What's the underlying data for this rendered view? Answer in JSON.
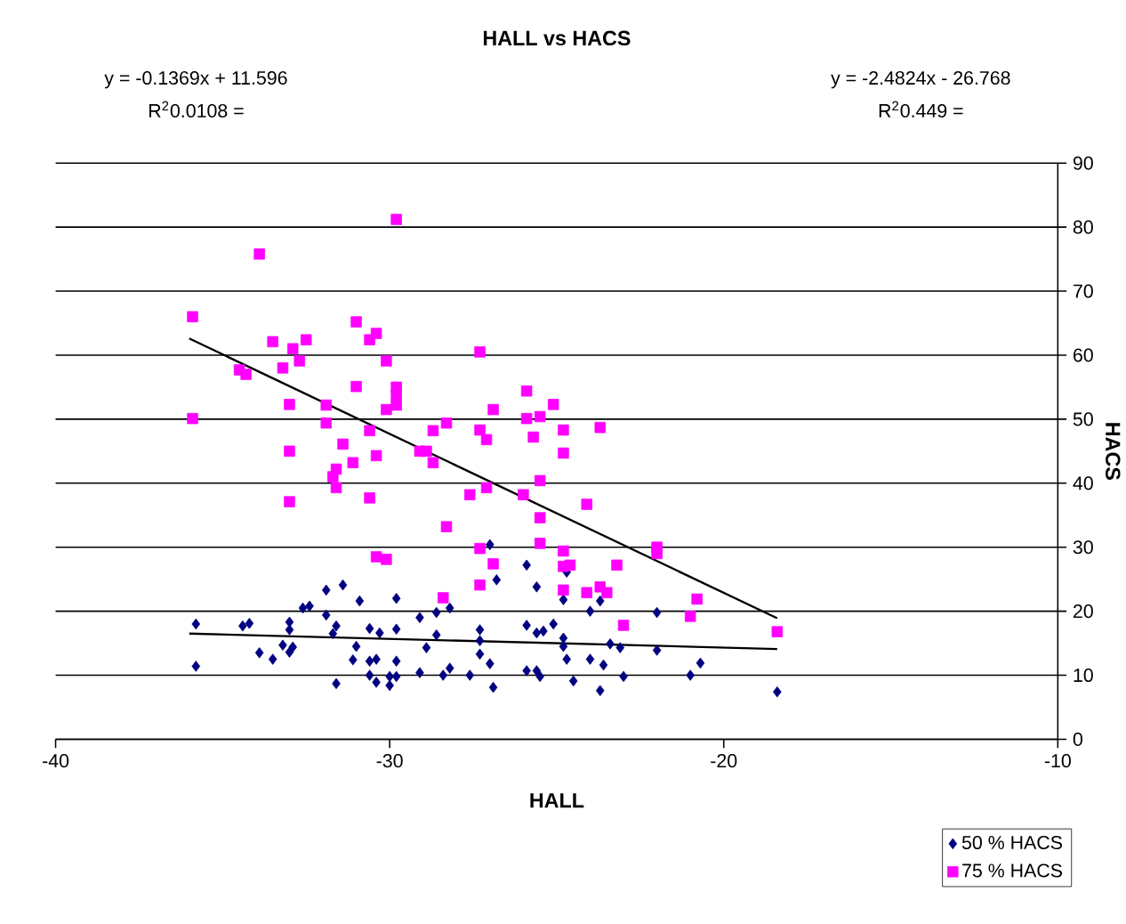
{
  "chart_data": {
    "type": "scatter",
    "title": "HALL vs HACS",
    "xlabel": "HALL",
    "ylabel": "HACS",
    "annotations": [
      "y = -0.1369x + 11.596",
      "R$^{2}$0.0108 =",
      "y = -2.4824x - 26.768",
      "R$^{2}$0.449 ="
    ],
    "xlim": [
      -40,
      -10
    ],
    "xticks": [
      -40,
      -30,
      -20,
      -10
    ],
    "ylim": [
      0,
      90
    ],
    "yticks": [
      0,
      10,
      20,
      30,
      40,
      50,
      60,
      70,
      80,
      90
    ],
    "grid": "y",
    "legend": "bottom right",
    "series": [
      {
        "name": "50 % HACS",
        "color": "#000080",
        "marker": "diamond",
        "x": [
          -35.8,
          -35.8,
          -34.4,
          -34.2,
          -33.9,
          -33.5,
          -33.2,
          -33.0,
          -32.9,
          -33.0,
          -33.0,
          -32.6,
          -32.4,
          -31.9,
          -31.4,
          -30.9,
          -31.9,
          -31.6,
          -31.7,
          -31.0,
          -31.1,
          -31.6,
          -30.6,
          -30.3,
          -30.6,
          -30.4,
          -30.6,
          -30.4,
          -30.0,
          -30.0,
          -29.8,
          -29.8,
          -29.8,
          -29.8,
          -29.1,
          -28.6,
          -28.2,
          -28.6,
          -28.9,
          -29.1,
          -28.4,
          -28.2,
          -27.6,
          -27.3,
          -27.3,
          -27.3,
          -27.0,
          -26.9,
          -25.9,
          -25.9,
          -25.6,
          -25.6,
          -25.6,
          -27.0,
          -25.9,
          -26.8,
          -25.5,
          -24.8,
          -24.7,
          -25.1,
          -25.4,
          -24.8,
          -24.8,
          -24.7,
          -24.0,
          -24.0,
          -23.7,
          -23.6,
          -23.4,
          -23.1,
          -24.5,
          -23.7,
          -23.0,
          -22.0,
          -22.0,
          -21.0,
          -20.7,
          -18.4
        ],
        "values": [
          18.0,
          11.4,
          17.7,
          18.1,
          13.5,
          12.5,
          14.7,
          13.6,
          14.4,
          18.3,
          17.1,
          20.5,
          20.8,
          23.3,
          24.1,
          21.6,
          19.4,
          17.7,
          16.5,
          14.5,
          12.4,
          8.7,
          17.3,
          16.6,
          12.2,
          12.5,
          10.0,
          8.9,
          8.4,
          9.8,
          12.2,
          9.8,
          17.2,
          22.0,
          19.0,
          19.8,
          20.5,
          16.3,
          14.3,
          10.4,
          10.0,
          11.1,
          10.0,
          17.1,
          15.4,
          13.3,
          11.8,
          8.1,
          17.8,
          10.7,
          10.7,
          16.6,
          23.8,
          30.4,
          27.2,
          24.9,
          9.8,
          21.8,
          26.1,
          18.0,
          16.9,
          15.8,
          14.5,
          12.5,
          12.5,
          20.0,
          21.6,
          11.6,
          14.9,
          14.3,
          9.1,
          7.6,
          9.8,
          19.8,
          13.9,
          10.0,
          11.9,
          7.4
        ]
      },
      {
        "name": "75 % HACS",
        "color": "#ff00ff",
        "marker": "square",
        "x": [
          -35.9,
          -35.9,
          -33.9,
          -29.8,
          -33.5,
          -32.9,
          -32.5,
          -32.7,
          -34.5,
          -34.3,
          -33.2,
          -31.0,
          -30.6,
          -30.4,
          -30.1,
          -31.0,
          -29.8,
          -29.8,
          -29.8,
          -30.1,
          -33.0,
          -31.9,
          -31.9,
          -30.6,
          -31.4,
          -33.0,
          -31.1,
          -30.4,
          -31.6,
          -31.7,
          -31.6,
          -33.0,
          -30.6,
          -28.7,
          -28.3,
          -29.1,
          -28.9,
          -28.7,
          -27.3,
          -27.1,
          -27.3,
          -26.9,
          -25.9,
          -25.9,
          -25.7,
          -27.6,
          -27.1,
          -26.0,
          -28.3,
          -30.4,
          -30.1,
          -27.3,
          -26.9,
          -27.3,
          -28.4,
          -25.5,
          -25.1,
          -24.8,
          -24.8,
          -23.7,
          -25.5,
          -25.5,
          -24.1,
          -25.5,
          -24.8,
          -22.0,
          -22.0,
          -24.8,
          -24.6,
          -23.2,
          -24.8,
          -24.1,
          -23.7,
          -23.5,
          -20.8,
          -21.0,
          -23.0,
          -18.4
        ],
        "values": [
          66.0,
          50.1,
          75.8,
          81.2,
          62.1,
          61.0,
          62.4,
          59.1,
          57.7,
          57.0,
          58.0,
          65.2,
          62.4,
          63.4,
          59.1,
          55.1,
          55.0,
          53.7,
          52.2,
          51.5,
          52.3,
          52.2,
          49.4,
          48.2,
          46.1,
          45.0,
          43.2,
          44.3,
          42.2,
          41.0,
          39.3,
          37.1,
          37.7,
          48.2,
          49.4,
          45.0,
          45.0,
          43.2,
          48.3,
          46.8,
          60.5,
          51.5,
          54.4,
          50.1,
          47.2,
          38.2,
          39.3,
          38.2,
          33.2,
          28.5,
          28.1,
          29.8,
          27.4,
          24.1,
          22.1,
          50.4,
          52.3,
          48.3,
          44.7,
          48.7,
          40.4,
          34.6,
          36.7,
          30.6,
          29.4,
          30.0,
          29.0,
          27.0,
          27.2,
          27.2,
          23.3,
          22.9,
          23.8,
          22.9,
          21.9,
          19.2,
          17.8,
          16.8
        ]
      },
      {
        "type": "line",
        "color": "#000000",
        "x": [
          -36,
          -18.4
        ],
        "values": [
          16.5,
          14.1
        ]
      },
      {
        "type": "line",
        "color": "#000000",
        "x": [
          -36,
          -18.4
        ],
        "values": [
          62.6,
          18.9
        ]
      }
    ]
  }
}
